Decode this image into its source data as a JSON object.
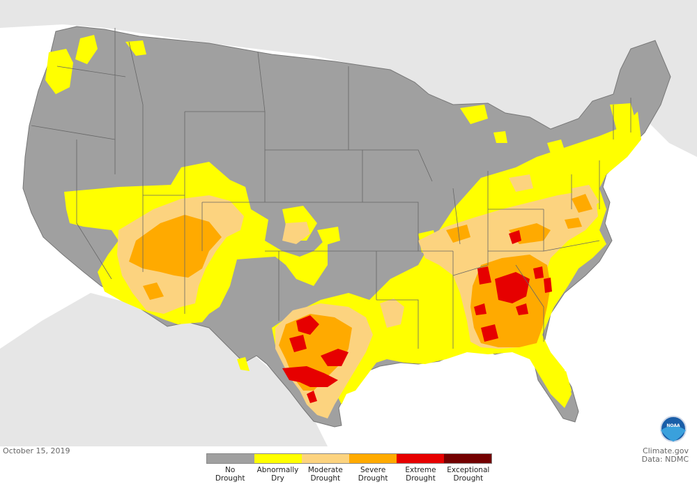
{
  "date": "October 15, 2019",
  "credit": {
    "line1": "Climate.gov",
    "line2": "Data: NDMC"
  },
  "logo": {
    "name": "noaa-logo",
    "text": "NOAA"
  },
  "colors": {
    "ocean": "#ffffff",
    "neighbor_land": "#e6e6e6",
    "no_drought": "#a0a0a0",
    "abnormally_dry": "#ffff00",
    "moderate": "#fcd37f",
    "severe": "#ffaa00",
    "extreme": "#e60000",
    "exceptional": "#730000",
    "border": "#666666"
  },
  "legend": [
    {
      "line1": "No",
      "line2": "Drought",
      "color": "#a0a0a0"
    },
    {
      "line1": "Abnormally",
      "line2": "Dry",
      "color": "#ffff00"
    },
    {
      "line1": "Moderate",
      "line2": "Drought",
      "color": "#fcd37f"
    },
    {
      "line1": "Severe",
      "line2": "Drought",
      "color": "#ffaa00"
    },
    {
      "line1": "Extreme",
      "line2": "Drought",
      "color": "#e60000"
    },
    {
      "line1": "Exceptional",
      "line2": "Drought",
      "color": "#730000"
    }
  ]
}
